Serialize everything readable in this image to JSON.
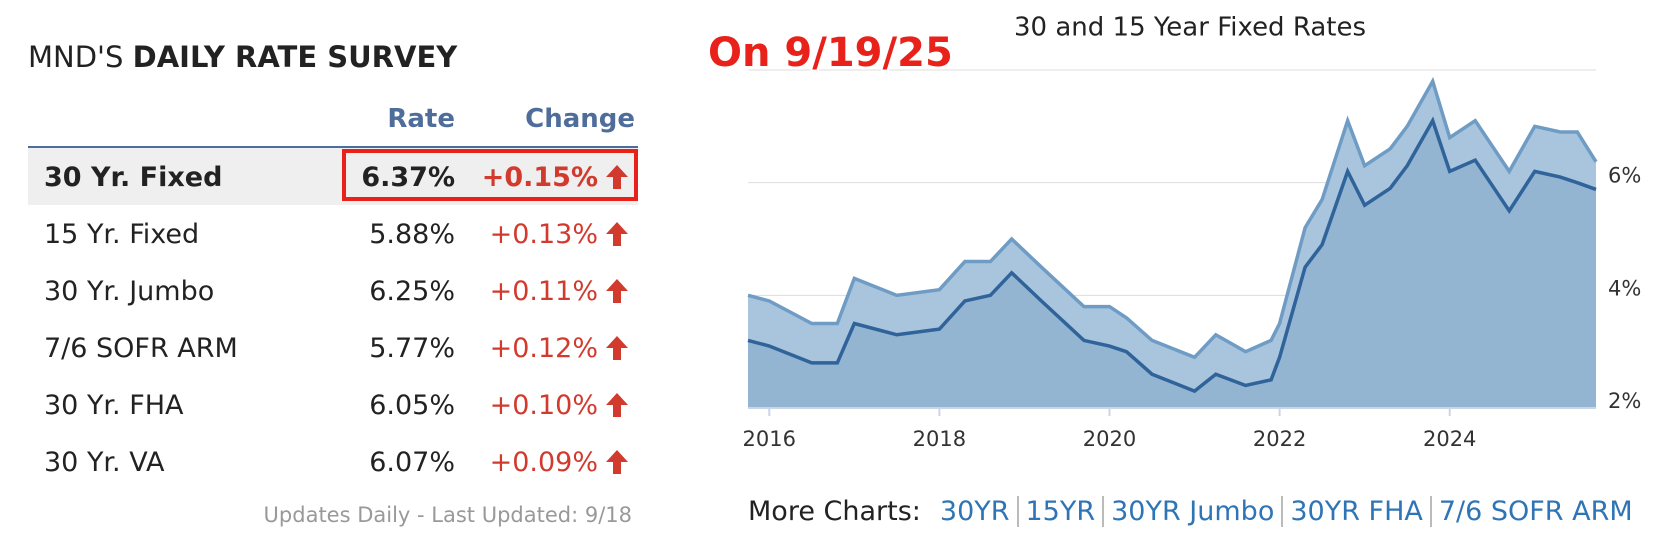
{
  "header": {
    "title_prefix": "MND'S",
    "title_bold": "DAILY RATE SURVEY"
  },
  "table": {
    "columns": [
      "Rate",
      "Change"
    ],
    "rows": [
      [
        "30 Yr. Fixed",
        "6.37%",
        "+0.15%"
      ],
      [
        "15 Yr. Fixed",
        "5.88%",
        "+0.13%"
      ],
      [
        "30 Yr. Jumbo",
        "6.25%",
        "+0.11%"
      ],
      [
        "7/6 SOFR ARM",
        "5.77%",
        "+0.12%"
      ],
      [
        "30 Yr. FHA",
        "6.05%",
        "+0.10%"
      ],
      [
        "30 Yr. VA",
        "6.07%",
        "+0.09%"
      ]
    ]
  },
  "annotation": "On 9/19/25",
  "footer": "Updates Daily - Last Updated: 9/18",
  "more_charts": {
    "label": "More Charts:",
    "links": [
      "30YR",
      "15YR",
      "30YR Jumbo",
      "30YR FHA",
      "7/6 SOFR ARM"
    ]
  },
  "chart_data": {
    "type": "area",
    "title": "30 and 15 Year Fixed Rates",
    "x": [
      2015.75,
      2016.0,
      2016.5,
      2016.8,
      2017.0,
      2017.5,
      2018.0,
      2018.3,
      2018.6,
      2018.85,
      2019.2,
      2019.7,
      2020.0,
      2020.2,
      2020.5,
      2021.0,
      2021.25,
      2021.6,
      2021.9,
      2022.0,
      2022.3,
      2022.5,
      2022.8,
      2023.0,
      2023.3,
      2023.5,
      2023.8,
      2024.0,
      2024.3,
      2024.7,
      2025.0,
      2025.3,
      2025.5,
      2025.72
    ],
    "series": [
      {
        "color": "#6f9cc4",
        "values": [
          4.0,
          3.9,
          3.5,
          3.5,
          4.3,
          4.0,
          4.1,
          4.6,
          4.6,
          5.0,
          4.5,
          3.8,
          3.8,
          3.6,
          3.2,
          2.9,
          3.3,
          3.0,
          3.2,
          3.5,
          5.2,
          5.7,
          7.1,
          6.3,
          6.6,
          7.0,
          7.8,
          6.8,
          7.1,
          6.2,
          7.0,
          6.9,
          6.9,
          6.37
        ]
      },
      {
        "color": "#2f6399",
        "values": [
          3.2,
          3.1,
          2.8,
          2.8,
          3.5,
          3.3,
          3.4,
          3.9,
          4.0,
          4.4,
          3.9,
          3.2,
          3.1,
          3.0,
          2.6,
          2.3,
          2.6,
          2.4,
          2.5,
          2.9,
          4.5,
          4.9,
          6.2,
          5.6,
          5.9,
          6.3,
          7.1,
          6.2,
          6.4,
          5.5,
          6.2,
          6.1,
          6.0,
          5.88
        ]
      }
    ],
    "xlim": [
      2015.75,
      2025.72
    ],
    "xticks": [
      2016,
      2018,
      2020,
      2022,
      2024
    ],
    "ylim": [
      2,
      8
    ],
    "yticks": [
      {
        "value": 2,
        "label": "2%"
      },
      {
        "value": 4,
        "label": "4%"
      },
      {
        "value": 6,
        "label": "6%"
      }
    ],
    "grid": true
  }
}
